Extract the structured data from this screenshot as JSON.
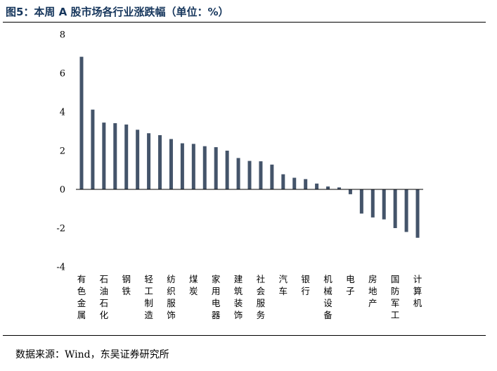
{
  "figure": {
    "title": "图5：本周 A 股市场各行业涨跌幅（单位：%）",
    "source": "数据来源：Wind，东吴证券研究所"
  },
  "chart_data": {
    "type": "bar",
    "title": "图5：本周 A 股市场各行业涨跌幅（单位：%）",
    "xlabel": "",
    "ylabel": "",
    "ylim": [
      -4,
      8
    ],
    "yticks": [
      -4,
      -2,
      0,
      2,
      4,
      6,
      8
    ],
    "grid": false,
    "bar_color": "#44546a",
    "categories": [
      "有色金属",
      "",
      "石油石化",
      "",
      "钢铁",
      "",
      "轻工制造",
      "",
      "纺织服饰",
      "",
      "煤炭",
      "",
      "家用电器",
      "",
      "建筑装饰",
      "",
      "社会服务",
      "",
      "汽车",
      "",
      "银行",
      "",
      "机械设备",
      "",
      "电子",
      "",
      "房地产",
      "",
      "国防军工",
      "",
      "计算机"
    ],
    "values": [
      6.85,
      4.12,
      3.45,
      3.42,
      3.35,
      3.08,
      2.9,
      2.8,
      2.6,
      2.38,
      2.35,
      2.23,
      2.18,
      2.0,
      1.62,
      1.47,
      1.45,
      1.28,
      0.78,
      0.6,
      0.53,
      0.3,
      0.15,
      0.1,
      -0.25,
      -1.25,
      -1.45,
      -1.55,
      -2.0,
      -2.2,
      -2.5
    ]
  }
}
